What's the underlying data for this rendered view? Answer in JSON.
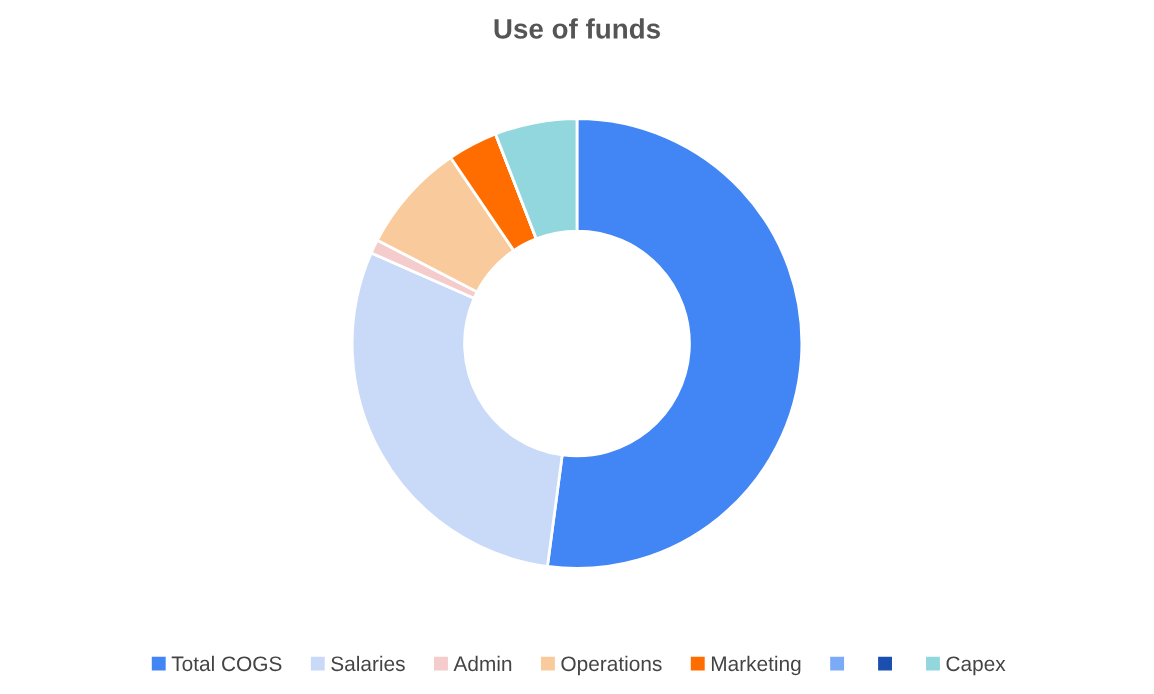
{
  "chart_data": {
    "type": "donut",
    "title": "Use of funds",
    "categories": [
      "Total COGS",
      "Salaries",
      "Admin",
      "Operations",
      "Marketing",
      null,
      null,
      "Capex"
    ],
    "values": [
      52.1,
      29.5,
      1.0,
      7.9,
      3.6,
      0,
      0,
      5.9
    ],
    "colors": [
      "#4285f4",
      "#c9daf8",
      "#f4cccc",
      "#f9cb9c",
      "#ff6d01",
      "#7baaf7",
      "#1a4fb0",
      "#93d7de"
    ],
    "legend": "bottom"
  }
}
